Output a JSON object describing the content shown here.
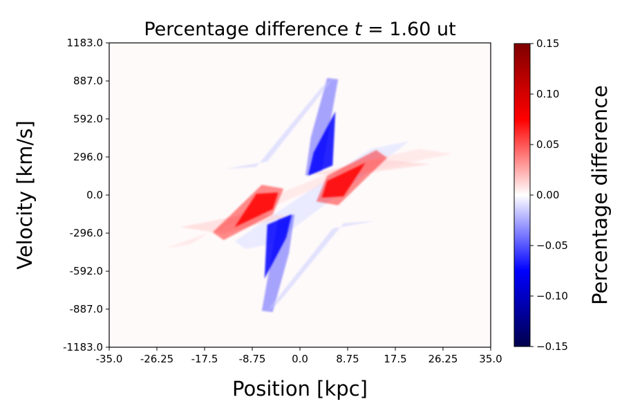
{
  "chart_data": {
    "type": "heatmap",
    "title": "Percentage difference t = 1.60 ut",
    "title_prefix": "Percentage difference ",
    "title_var": "t",
    "title_suffix": " =  1.60 ut",
    "xlabel": "Position [kpc]",
    "ylabel": "Velocity [km/s]",
    "colorbar_label": "Percentage difference",
    "xlim": [
      -35.0,
      35.0
    ],
    "ylim": [
      -1183.0,
      1183.0
    ],
    "x_ticks": [
      "-35.0",
      "-26.25",
      "-17.5",
      "-8.75",
      "0.0",
      "8.75",
      "17.5",
      "26.25",
      "35.0"
    ],
    "y_ticks": [
      "-1183.0",
      "-887.0",
      "-592.0",
      "-296.0",
      "0.0",
      "296.0",
      "592.0",
      "887.0",
      "1183.0"
    ],
    "color_range": [
      -0.15,
      0.15
    ],
    "colorbar_ticks": [
      "−0.15",
      "−0.10",
      "−0.05",
      "0.00",
      "0.05",
      "0.10",
      "0.15"
    ],
    "colormap": "seismic",
    "colormap_stops": [
      "#00004c",
      "#0000ff",
      "#ffffff",
      "#ff0000",
      "#7f0000"
    ],
    "features": [
      {
        "sign": "negative",
        "x_range": [
          1.0,
          7.0
        ],
        "v_range": [
          150,
          900
        ],
        "description": "blue lobe upper"
      },
      {
        "sign": "negative",
        "x_range": [
          -7.0,
          -1.0
        ],
        "v_range": [
          -900,
          -150
        ],
        "description": "blue lobe lower"
      },
      {
        "sign": "positive",
        "x_range": [
          3.0,
          16.0
        ],
        "v_range": [
          -50,
          350
        ],
        "description": "red arm right"
      },
      {
        "sign": "positive",
        "x_range": [
          -16.0,
          -3.0
        ],
        "v_range": [
          -350,
          50
        ],
        "description": "red arm left"
      }
    ]
  }
}
